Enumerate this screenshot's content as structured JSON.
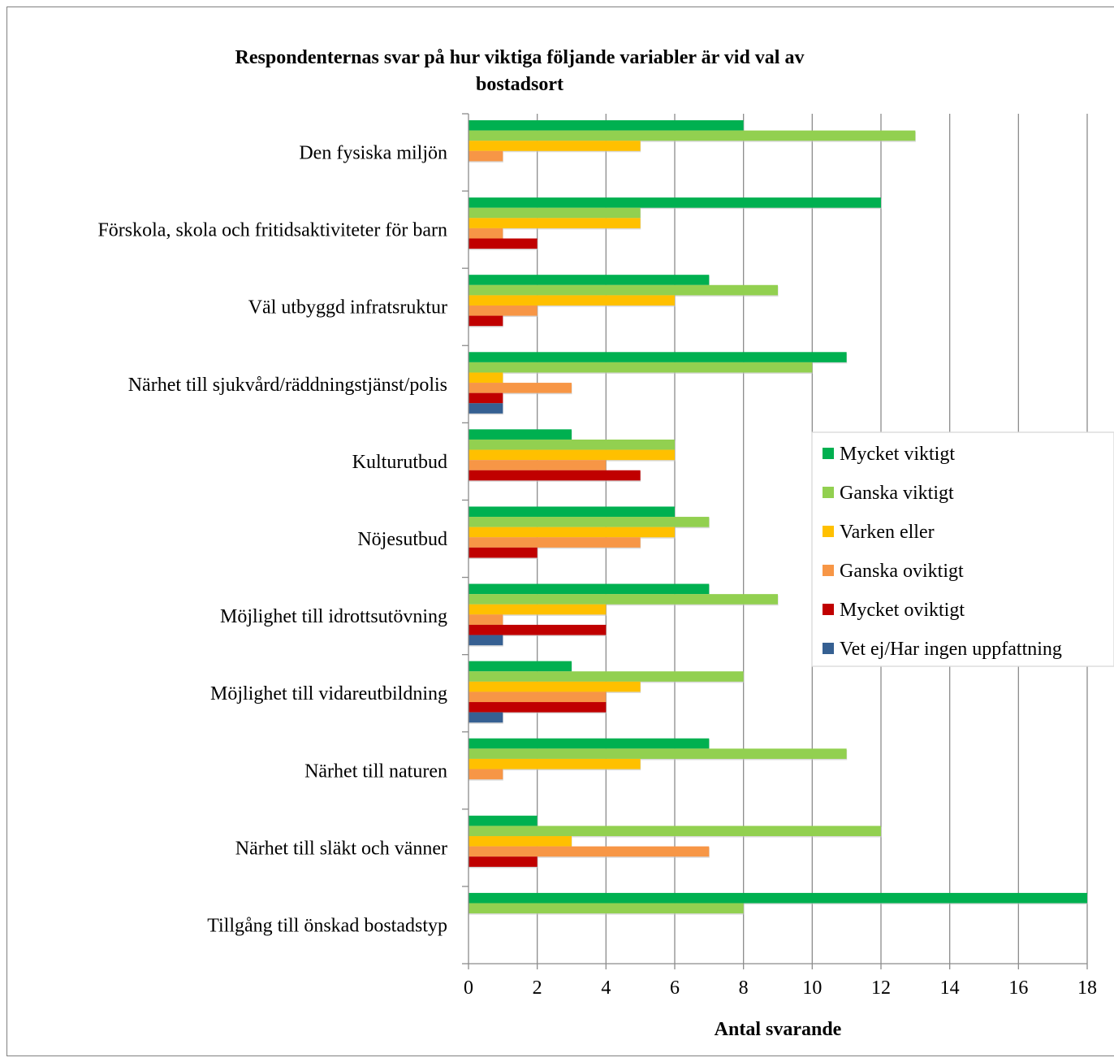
{
  "chart_data": {
    "type": "bar",
    "orientation": "horizontal",
    "title_line1": "Respondenternas svar på hur viktiga följande variabler är vid val av",
    "title_line2": "bostadsort",
    "xlabel": "Antal svarande",
    "ylabel": "",
    "xlim": [
      0,
      18
    ],
    "x_ticks": [
      0,
      2,
      4,
      6,
      8,
      10,
      12,
      14,
      16,
      18
    ],
    "grid": "vertical",
    "legend_position": "right",
    "categories": [
      "Den fysiska miljön",
      "Förskola, skola och fritidsaktiviteter för barn",
      "Väl utbyggd infratsruktur",
      "Närhet till sjukvård/räddningstjänst/polis",
      "Kulturutbud",
      "Nöjesutbud",
      "Möjlighet till idrottsutövning",
      "Möjlighet till vidareutbildning",
      "Närhet till naturen",
      "Närhet till släkt och vänner",
      "Tillgång till önskad bostadstyp"
    ],
    "series": [
      {
        "name": "Mycket viktigt",
        "color": "#00B050",
        "values": [
          8,
          12,
          7,
          11,
          3,
          6,
          7,
          3,
          7,
          2,
          18
        ]
      },
      {
        "name": "Ganska viktigt",
        "color": "#92D050",
        "values": [
          13,
          5,
          9,
          10,
          6,
          7,
          9,
          8,
          11,
          12,
          8
        ]
      },
      {
        "name": "Varken eller",
        "color": "#FFC000",
        "values": [
          5,
          5,
          6,
          1,
          6,
          6,
          4,
          5,
          5,
          3,
          0
        ]
      },
      {
        "name": "Ganska oviktigt",
        "color": "#F79646",
        "values": [
          1,
          1,
          2,
          3,
          4,
          5,
          1,
          4,
          1,
          7,
          0
        ]
      },
      {
        "name": "Mycket oviktigt",
        "color": "#C00000",
        "values": [
          0,
          2,
          1,
          1,
          5,
          2,
          4,
          4,
          0,
          2,
          0
        ]
      },
      {
        "name": "Vet ej/Har ingen uppfattning",
        "color": "#366092",
        "values": [
          0,
          0,
          0,
          1,
          0,
          0,
          1,
          1,
          0,
          0,
          0
        ]
      }
    ]
  }
}
